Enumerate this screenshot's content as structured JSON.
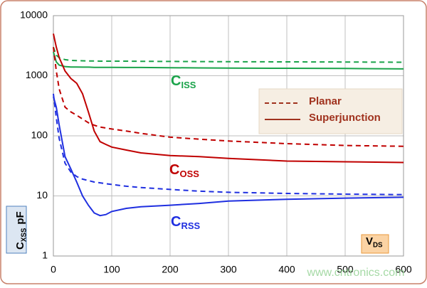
{
  "chart_data": {
    "type": "line",
    "log_y": true,
    "grid": true,
    "x": [
      0,
      5,
      10,
      20,
      30,
      40,
      50,
      60,
      70,
      80,
      90,
      100,
      125,
      150,
      200,
      250,
      300,
      400,
      500,
      600
    ],
    "xlim": [
      0,
      600
    ],
    "xticks": [
      0,
      100,
      200,
      300,
      400,
      500,
      600
    ],
    "ylim": [
      1,
      10000
    ],
    "yticks": [
      1,
      10,
      100,
      1000,
      10000
    ],
    "series": [
      {
        "color": "#1aa34a",
        "style": "solid",
        "values": [
          2500,
          1700,
          1500,
          1420,
          1400,
          1400,
          1390,
          1390,
          1380,
          1380,
          1380,
          1380,
          1370,
          1370,
          1360,
          1350,
          1340,
          1330,
          1320,
          1300
        ]
      },
      {
        "color": "#1aa34a",
        "style": "dashed",
        "values": [
          3000,
          2200,
          2000,
          1850,
          1800,
          1780,
          1770,
          1760,
          1760,
          1750,
          1750,
          1750,
          1750,
          1740,
          1730,
          1720,
          1710,
          1700,
          1690,
          1680
        ]
      },
      {
        "color": "#c00000",
        "style": "solid",
        "values": [
          5000,
          3000,
          2000,
          1200,
          900,
          750,
          500,
          250,
          120,
          80,
          72,
          65,
          58,
          52,
          47,
          45,
          42,
          38,
          37,
          36
        ]
      },
      {
        "color": "#c00000",
        "style": "dashed",
        "values": [
          3000,
          1200,
          600,
          300,
          250,
          220,
          190,
          165,
          150,
          140,
          135,
          130,
          120,
          110,
          95,
          88,
          82,
          74,
          69,
          67
        ]
      },
      {
        "color": "#1f2fe0",
        "style": "solid",
        "values": [
          450,
          300,
          150,
          45,
          28,
          17,
          10,
          7,
          5.2,
          4.7,
          4.9,
          5.5,
          6.2,
          6.6,
          7.0,
          7.5,
          8.2,
          8.8,
          9.2,
          9.5
        ]
      },
      {
        "color": "#1f2fe0",
        "style": "dashed",
        "values": [
          500,
          200,
          90,
          35,
          25,
          21,
          19,
          18,
          17,
          16.5,
          16,
          15.5,
          14.5,
          13.8,
          12.8,
          12,
          11.5,
          11,
          10.7,
          10.5
        ]
      }
    ],
    "legend": [
      {
        "label": "Planar",
        "style": "dashed"
      },
      {
        "label": "Superjunction",
        "style": "solid"
      }
    ],
    "legend_color": "#a0321e",
    "annotations": [
      {
        "main": "C",
        "sub": "ISS",
        "color": "#1aa34a"
      },
      {
        "main": "C",
        "sub": "OSS",
        "color": "#c00000"
      },
      {
        "main": "C",
        "sub": "RSS",
        "color": "#1f2fe0"
      }
    ],
    "ylabel": {
      "main": "C",
      "sub": "XSS",
      "unit": "pF"
    },
    "xlabel": {
      "main": "V",
      "sub": "DS"
    },
    "watermark": "www.cntronics.com"
  }
}
